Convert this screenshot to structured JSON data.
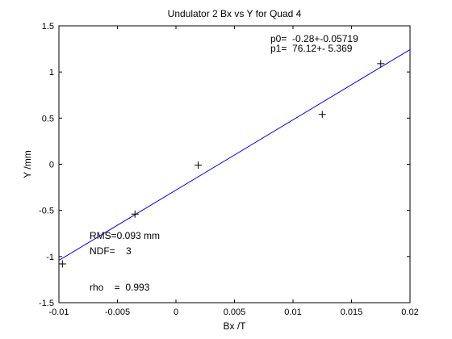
{
  "chart_data": {
    "type": "scatter",
    "title": "Undulator 2 Bx vs Y for Quad 4",
    "xlabel": "Bx /T",
    "ylabel": "Y /mm",
    "xlim": [
      -0.01,
      0.02
    ],
    "ylim": [
      -1.5,
      1.5
    ],
    "x_ticks": [
      -0.01,
      -0.005,
      0,
      0.005,
      0.01,
      0.015,
      0.02
    ],
    "x_tick_labels": [
      "-0.01",
      "-0.005",
      "0",
      "0.005",
      "0.01",
      "0.015",
      "0.02"
    ],
    "y_ticks": [
      -1.5,
      -1,
      -0.5,
      0,
      0.5,
      1,
      1.5
    ],
    "y_tick_labels": [
      "-1.5",
      "-1",
      "-0.5",
      "0",
      "0.5",
      "1",
      "1.5"
    ],
    "grid": false,
    "points": [
      {
        "x": -0.0097,
        "y": -1.08
      },
      {
        "x": -0.0035,
        "y": -0.54
      },
      {
        "x": 0.0019,
        "y": -0.01
      },
      {
        "x": 0.0125,
        "y": 0.54
      },
      {
        "x": 0.0175,
        "y": 1.09
      }
    ],
    "fit_line": {
      "intercept": -0.28,
      "slope": 76.12,
      "x_range": [
        -0.01,
        0.02
      ]
    },
    "colors": {
      "fit_line": "#0000ff",
      "points": "#000000",
      "axes": "#000000"
    },
    "annotations": {
      "p0": "p0=  -0.28+-0.05719",
      "p1": "p1=  76.12+- 5.369",
      "rms": "RMS=0.093 mm",
      "ndf": "NDF=    3",
      "rho": "rho    =  0.993"
    }
  }
}
